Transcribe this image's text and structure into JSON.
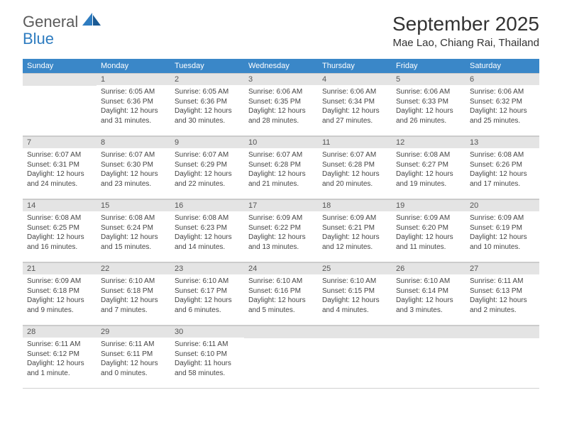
{
  "brand": {
    "line1": "General",
    "line2": "Blue"
  },
  "title": "September 2025",
  "location": "Mae Lao, Chiang Rai, Thailand",
  "colors": {
    "header_bg": "#3a87c8",
    "header_text": "#ffffff",
    "daynum_bg": "#e4e4e4",
    "text": "#444444",
    "brand_gray": "#5a5a5a",
    "brand_blue": "#2e7cc0"
  },
  "day_headers": [
    "Sunday",
    "Monday",
    "Tuesday",
    "Wednesday",
    "Thursday",
    "Friday",
    "Saturday"
  ],
  "weeks": [
    [
      {
        "n": "",
        "sunrise": "",
        "sunset": "",
        "daylight": ""
      },
      {
        "n": "1",
        "sunrise": "Sunrise: 6:05 AM",
        "sunset": "Sunset: 6:36 PM",
        "daylight": "Daylight: 12 hours and 31 minutes."
      },
      {
        "n": "2",
        "sunrise": "Sunrise: 6:05 AM",
        "sunset": "Sunset: 6:36 PM",
        "daylight": "Daylight: 12 hours and 30 minutes."
      },
      {
        "n": "3",
        "sunrise": "Sunrise: 6:06 AM",
        "sunset": "Sunset: 6:35 PM",
        "daylight": "Daylight: 12 hours and 28 minutes."
      },
      {
        "n": "4",
        "sunrise": "Sunrise: 6:06 AM",
        "sunset": "Sunset: 6:34 PM",
        "daylight": "Daylight: 12 hours and 27 minutes."
      },
      {
        "n": "5",
        "sunrise": "Sunrise: 6:06 AM",
        "sunset": "Sunset: 6:33 PM",
        "daylight": "Daylight: 12 hours and 26 minutes."
      },
      {
        "n": "6",
        "sunrise": "Sunrise: 6:06 AM",
        "sunset": "Sunset: 6:32 PM",
        "daylight": "Daylight: 12 hours and 25 minutes."
      }
    ],
    [
      {
        "n": "7",
        "sunrise": "Sunrise: 6:07 AM",
        "sunset": "Sunset: 6:31 PM",
        "daylight": "Daylight: 12 hours and 24 minutes."
      },
      {
        "n": "8",
        "sunrise": "Sunrise: 6:07 AM",
        "sunset": "Sunset: 6:30 PM",
        "daylight": "Daylight: 12 hours and 23 minutes."
      },
      {
        "n": "9",
        "sunrise": "Sunrise: 6:07 AM",
        "sunset": "Sunset: 6:29 PM",
        "daylight": "Daylight: 12 hours and 22 minutes."
      },
      {
        "n": "10",
        "sunrise": "Sunrise: 6:07 AM",
        "sunset": "Sunset: 6:28 PM",
        "daylight": "Daylight: 12 hours and 21 minutes."
      },
      {
        "n": "11",
        "sunrise": "Sunrise: 6:07 AM",
        "sunset": "Sunset: 6:28 PM",
        "daylight": "Daylight: 12 hours and 20 minutes."
      },
      {
        "n": "12",
        "sunrise": "Sunrise: 6:08 AM",
        "sunset": "Sunset: 6:27 PM",
        "daylight": "Daylight: 12 hours and 19 minutes."
      },
      {
        "n": "13",
        "sunrise": "Sunrise: 6:08 AM",
        "sunset": "Sunset: 6:26 PM",
        "daylight": "Daylight: 12 hours and 17 minutes."
      }
    ],
    [
      {
        "n": "14",
        "sunrise": "Sunrise: 6:08 AM",
        "sunset": "Sunset: 6:25 PM",
        "daylight": "Daylight: 12 hours and 16 minutes."
      },
      {
        "n": "15",
        "sunrise": "Sunrise: 6:08 AM",
        "sunset": "Sunset: 6:24 PM",
        "daylight": "Daylight: 12 hours and 15 minutes."
      },
      {
        "n": "16",
        "sunrise": "Sunrise: 6:08 AM",
        "sunset": "Sunset: 6:23 PM",
        "daylight": "Daylight: 12 hours and 14 minutes."
      },
      {
        "n": "17",
        "sunrise": "Sunrise: 6:09 AM",
        "sunset": "Sunset: 6:22 PM",
        "daylight": "Daylight: 12 hours and 13 minutes."
      },
      {
        "n": "18",
        "sunrise": "Sunrise: 6:09 AM",
        "sunset": "Sunset: 6:21 PM",
        "daylight": "Daylight: 12 hours and 12 minutes."
      },
      {
        "n": "19",
        "sunrise": "Sunrise: 6:09 AM",
        "sunset": "Sunset: 6:20 PM",
        "daylight": "Daylight: 12 hours and 11 minutes."
      },
      {
        "n": "20",
        "sunrise": "Sunrise: 6:09 AM",
        "sunset": "Sunset: 6:19 PM",
        "daylight": "Daylight: 12 hours and 10 minutes."
      }
    ],
    [
      {
        "n": "21",
        "sunrise": "Sunrise: 6:09 AM",
        "sunset": "Sunset: 6:18 PM",
        "daylight": "Daylight: 12 hours and 9 minutes."
      },
      {
        "n": "22",
        "sunrise": "Sunrise: 6:10 AM",
        "sunset": "Sunset: 6:18 PM",
        "daylight": "Daylight: 12 hours and 7 minutes."
      },
      {
        "n": "23",
        "sunrise": "Sunrise: 6:10 AM",
        "sunset": "Sunset: 6:17 PM",
        "daylight": "Daylight: 12 hours and 6 minutes."
      },
      {
        "n": "24",
        "sunrise": "Sunrise: 6:10 AM",
        "sunset": "Sunset: 6:16 PM",
        "daylight": "Daylight: 12 hours and 5 minutes."
      },
      {
        "n": "25",
        "sunrise": "Sunrise: 6:10 AM",
        "sunset": "Sunset: 6:15 PM",
        "daylight": "Daylight: 12 hours and 4 minutes."
      },
      {
        "n": "26",
        "sunrise": "Sunrise: 6:10 AM",
        "sunset": "Sunset: 6:14 PM",
        "daylight": "Daylight: 12 hours and 3 minutes."
      },
      {
        "n": "27",
        "sunrise": "Sunrise: 6:11 AM",
        "sunset": "Sunset: 6:13 PM",
        "daylight": "Daylight: 12 hours and 2 minutes."
      }
    ],
    [
      {
        "n": "28",
        "sunrise": "Sunrise: 6:11 AM",
        "sunset": "Sunset: 6:12 PM",
        "daylight": "Daylight: 12 hours and 1 minute."
      },
      {
        "n": "29",
        "sunrise": "Sunrise: 6:11 AM",
        "sunset": "Sunset: 6:11 PM",
        "daylight": "Daylight: 12 hours and 0 minutes."
      },
      {
        "n": "30",
        "sunrise": "Sunrise: 6:11 AM",
        "sunset": "Sunset: 6:10 PM",
        "daylight": "Daylight: 11 hours and 58 minutes."
      },
      {
        "n": "",
        "sunrise": "",
        "sunset": "",
        "daylight": ""
      },
      {
        "n": "",
        "sunrise": "",
        "sunset": "",
        "daylight": ""
      },
      {
        "n": "",
        "sunrise": "",
        "sunset": "",
        "daylight": ""
      },
      {
        "n": "",
        "sunrise": "",
        "sunset": "",
        "daylight": ""
      }
    ]
  ]
}
